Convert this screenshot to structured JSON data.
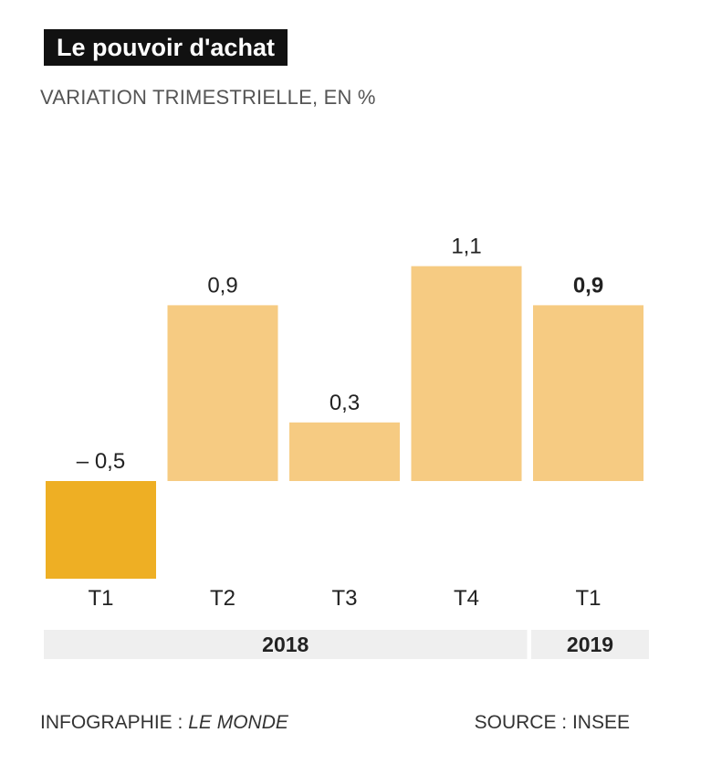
{
  "title": "Le pouvoir d'achat",
  "subtitle": "VARIATION TRIMESTRIELLE, EN %",
  "chart_data": {
    "type": "bar",
    "categories": [
      "T1",
      "T2",
      "T3",
      "T4",
      "T1"
    ],
    "values": [
      -0.5,
      0.9,
      0.3,
      1.1,
      0.9
    ],
    "value_labels": [
      "– 0,5",
      "0,9",
      "0,3",
      "1,1",
      "0,9"
    ],
    "highlight_last": true,
    "groups": [
      {
        "label": "2018",
        "categories": [
          0,
          1,
          2,
          3
        ]
      },
      {
        "label": "2019",
        "categories": [
          4
        ]
      }
    ],
    "colors": {
      "negative": "#EEAF24",
      "positive": "#F6CB82",
      "group_band": "#EFEFEF"
    },
    "ylabel": "%",
    "xlabel": ""
  },
  "footer": {
    "credit_prefix": "INFOGRAPHIE : ",
    "credit_name": "LE MONDE",
    "source": "SOURCE : INSEE"
  }
}
